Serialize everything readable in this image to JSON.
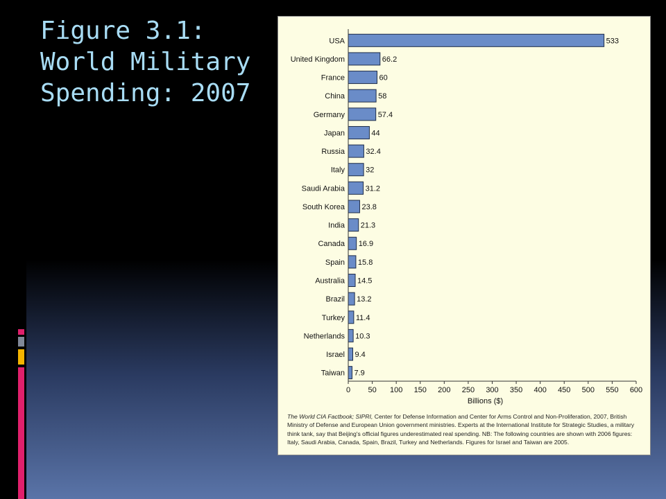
{
  "slide": {
    "title_lines": [
      "Figure 3.1:",
      "World Military",
      "Spending: 2007"
    ],
    "colors": {
      "title": "#a8dcf4",
      "bar_fill": "#6a8cc8",
      "panel_bg": "#fdfde3",
      "accent_pink": "#e0206c",
      "accent_gray": "#808898",
      "accent_yellow": "#f4b400"
    }
  },
  "chart_data": {
    "type": "bar",
    "orientation": "horizontal",
    "categories": [
      "USA",
      "United Kingdom",
      "France",
      "China",
      "Germany",
      "Japan",
      "Russia",
      "Italy",
      "Saudi Arabia",
      "South Korea",
      "India",
      "Canada",
      "Spain",
      "Australia",
      "Brazil",
      "Turkey",
      "Netherlands",
      "Israel",
      "Taiwan"
    ],
    "values": [
      533,
      66.2,
      60,
      58,
      57.4,
      44,
      32.4,
      32,
      31.2,
      23.8,
      21.3,
      16.9,
      15.8,
      14.5,
      13.2,
      11.4,
      10.3,
      9.4,
      7.9
    ],
    "value_labels": [
      "533",
      "66.2",
      "60",
      "58",
      "57.4",
      "44",
      "32.4",
      "32",
      "31.2",
      "23.8",
      "21.3",
      "16.9",
      "15.8",
      "14.5",
      "13.2",
      "11.4",
      "10.3",
      "9.4",
      "7.9"
    ],
    "xlabel": "Billions ($)",
    "xlim": [
      0,
      600
    ],
    "xticks": [
      0,
      50,
      100,
      150,
      200,
      250,
      300,
      350,
      400,
      450,
      500,
      550,
      600
    ],
    "grid": false,
    "legend": "none"
  },
  "source": {
    "italic": "The World CIA Factbook; SIPRI,",
    "text": " Center for Defense Information and Center for Arms Control and Non-Proliferation, 2007, British Ministry of Defense and European Union government ministries. Experts at the International Institute for Strategic Studies, a military think tank, say that Beijing's official figures underestimated real spending. NB: The following countries are shown with 2006 figures: Italy, Saudi Arabia, Canada, Spain, Brazil, Turkey and Netherlands. Figures for Israel and Taiwan are 2005."
  }
}
